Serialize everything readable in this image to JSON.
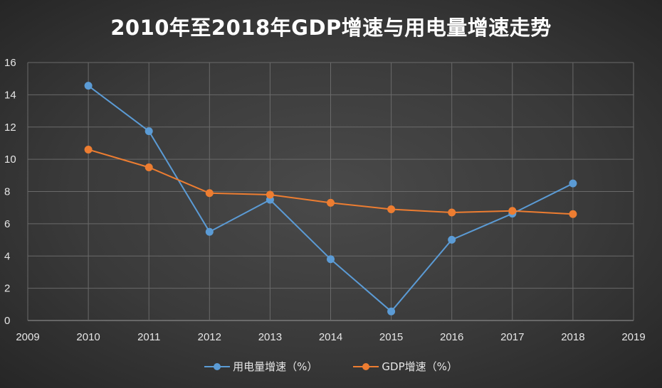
{
  "chart_data": {
    "type": "line",
    "title": "2010年至2018年GDP增速与用电量增速走势",
    "xlabel": "",
    "ylabel": "",
    "x": [
      2010,
      2011,
      2012,
      2013,
      2014,
      2015,
      2016,
      2017,
      2018
    ],
    "xlim": [
      2009,
      2019
    ],
    "ylim": [
      0,
      16
    ],
    "x_ticks": [
      "2009",
      "2010",
      "2011",
      "2012",
      "2013",
      "2014",
      "2015",
      "2016",
      "2017",
      "2018",
      "2019"
    ],
    "y_ticks": [
      "0",
      "2",
      "4",
      "6",
      "8",
      "10",
      "12",
      "14",
      "16"
    ],
    "grid": true,
    "legend_position": "bottom",
    "series": [
      {
        "name": "用电量增速（%）",
        "color": "#5b9bd5",
        "values": [
          14.56,
          11.74,
          5.5,
          7.49,
          3.8,
          0.56,
          5.01,
          6.63,
          8.5
        ]
      },
      {
        "name": "GDP增速（%）",
        "color": "#ed7d31",
        "values": [
          10.6,
          9.5,
          7.9,
          7.8,
          7.3,
          6.9,
          6.7,
          6.8,
          6.6
        ]
      }
    ]
  }
}
